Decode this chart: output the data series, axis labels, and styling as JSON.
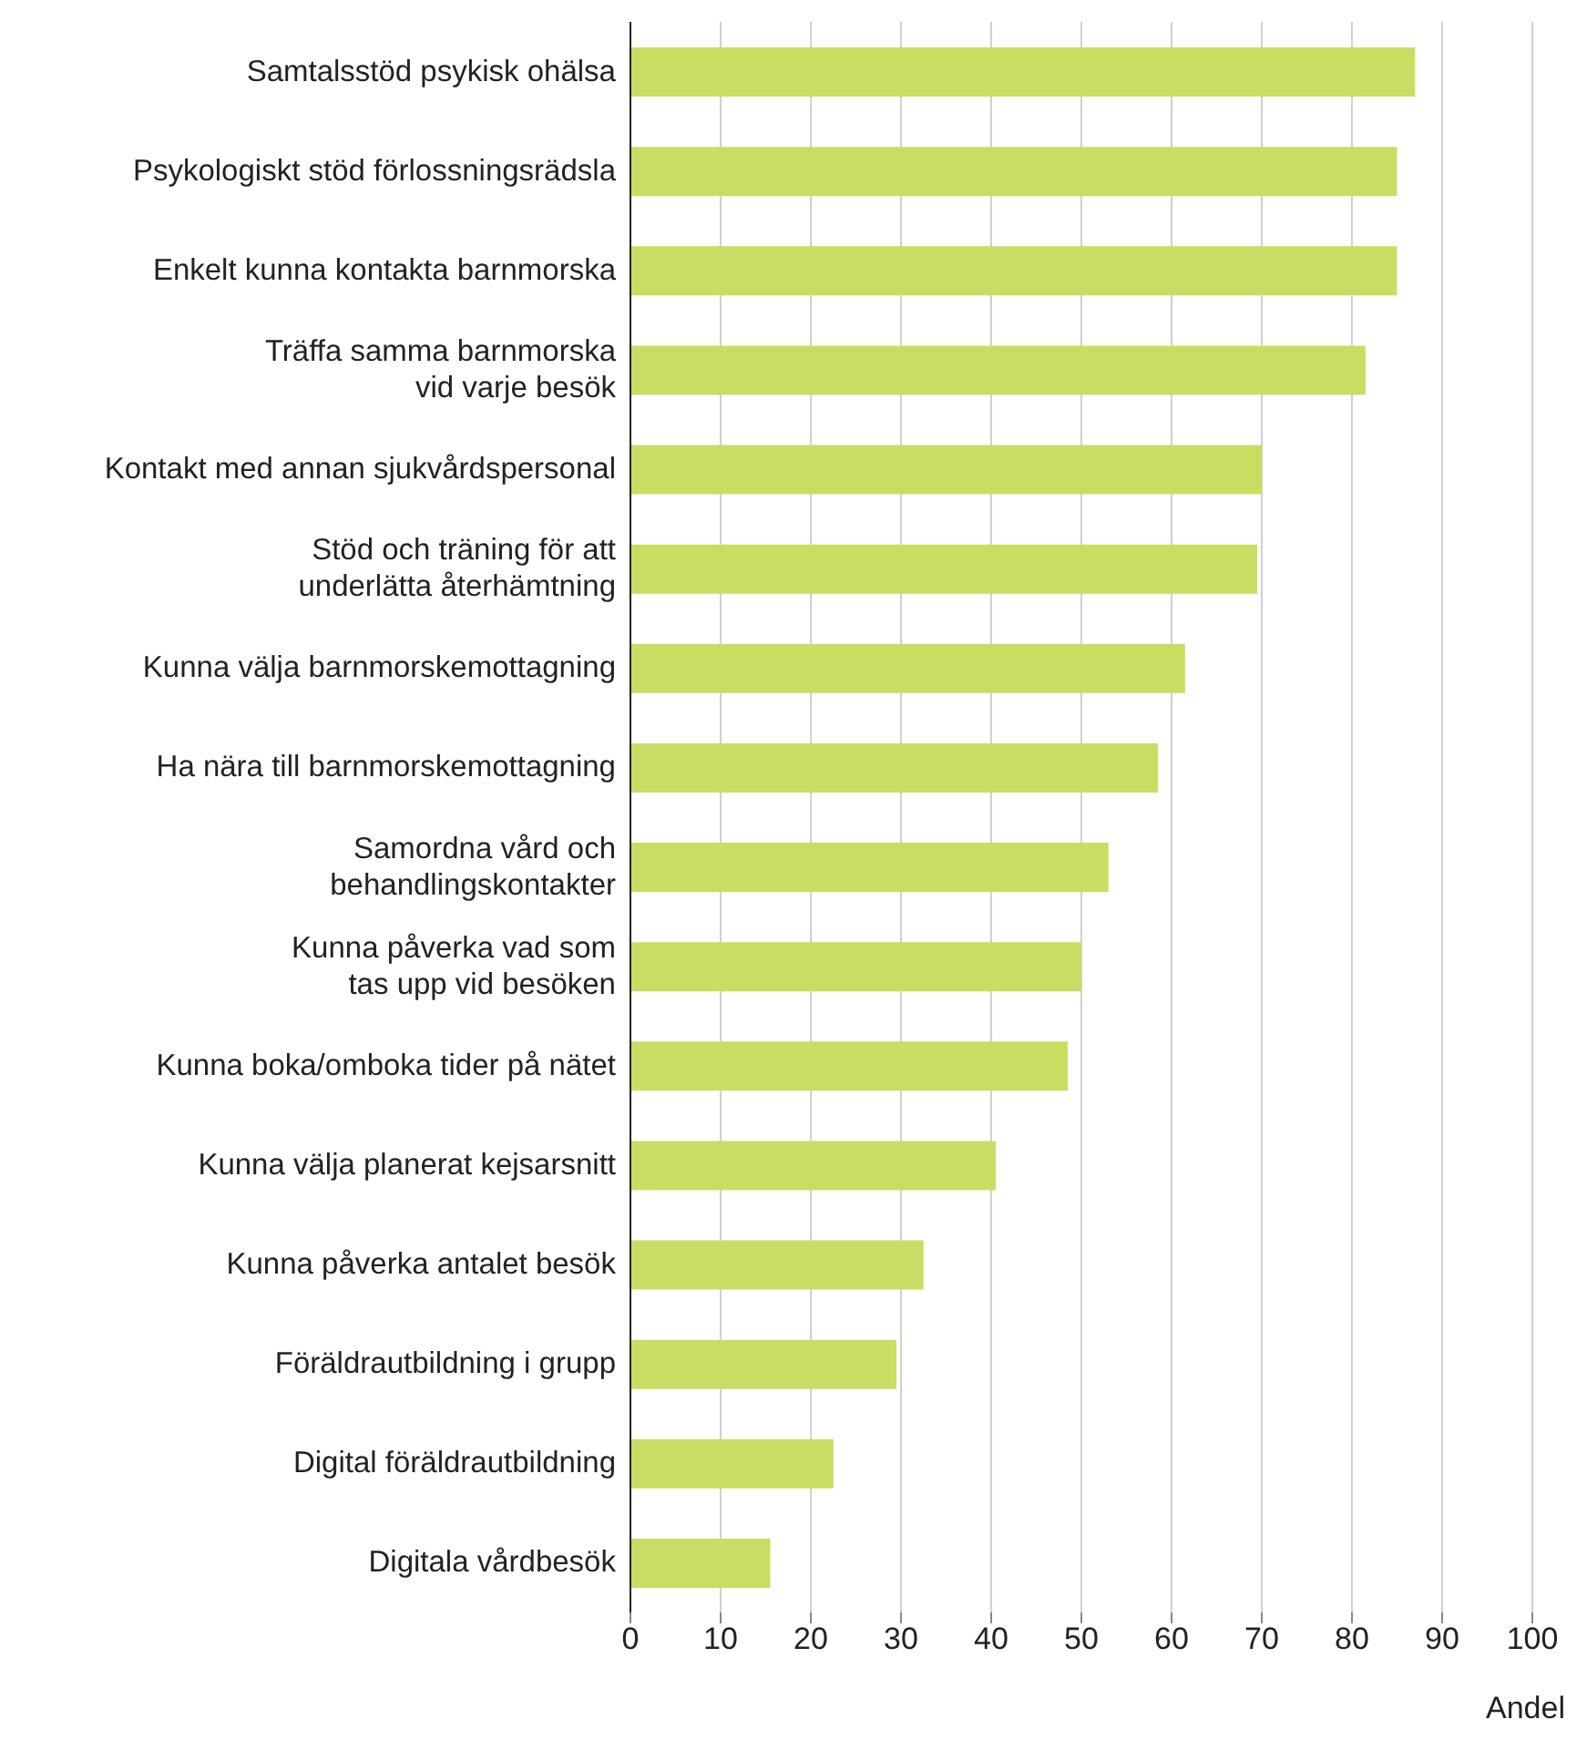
{
  "chart_data": {
    "type": "bar",
    "orientation": "horizontal",
    "xlabel": "Andel",
    "categories": [
      "Samtalsstöd psykisk ohälsa",
      "Psykologiskt stöd förlossningsrädsla",
      "Enkelt kunna kontakta barnmorska",
      "Träffa samma barnmorska\nvid varje besök",
      "Kontakt med annan sjukvårdspersonal",
      "Stöd och träning för att\nunderlätta återhämtning",
      "Kunna välja barnmorskemottagning",
      "Ha nära till barnmorskemottagning",
      "Samordna vård och\nbehandlingskontakter",
      "Kunna påverka vad som\ntas upp vid besöken",
      "Kunna boka/omboka tider på nätet",
      "Kunna välja planerat kejsarsnitt",
      "Kunna påverka antalet besök",
      "Föräldrautbildning i grupp",
      "Digital föräldrautbildning",
      "Digitala vårdbesök"
    ],
    "values": [
      87,
      85,
      85,
      81.5,
      70,
      69.5,
      61.5,
      58.5,
      53,
      50,
      48.5,
      40.5,
      32.5,
      29.5,
      22.5,
      15.5
    ],
    "color": "#c9dd63",
    "xlim": [
      0,
      100
    ],
    "xticks": [
      0,
      10,
      20,
      30,
      40,
      50,
      60,
      70,
      80,
      90,
      100
    ],
    "grid": "x"
  }
}
